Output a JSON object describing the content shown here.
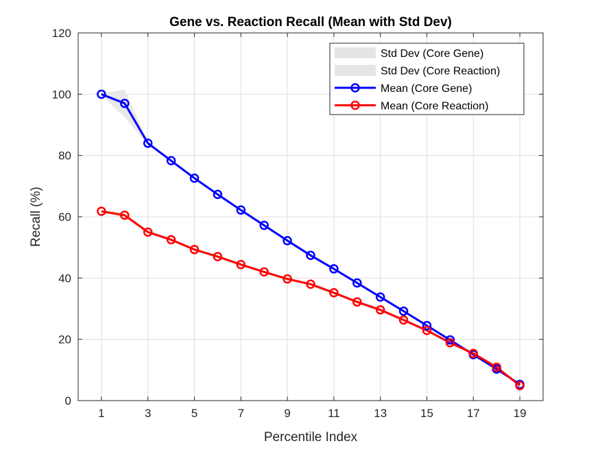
{
  "chart_data": {
    "type": "line",
    "title": "Gene vs. Reaction Recall (Mean with Std Dev)",
    "xlabel": "Percentile Index",
    "ylabel": "Recall (%)",
    "xlim": [
      0,
      20
    ],
    "ylim": [
      0,
      120
    ],
    "xticks": [
      1,
      3,
      5,
      7,
      9,
      11,
      13,
      15,
      17,
      19
    ],
    "yticks": [
      0,
      20,
      40,
      60,
      80,
      100,
      120
    ],
    "grid": true,
    "legend_position": "top-right",
    "x": [
      1,
      2,
      3,
      4,
      5,
      6,
      7,
      8,
      9,
      10,
      11,
      12,
      13,
      14,
      15,
      16,
      17,
      18,
      19
    ],
    "series": [
      {
        "name": "Mean (Core Gene)",
        "color": "#0000ff",
        "values": [
          100,
          97,
          84,
          78.3,
          72.6,
          67.3,
          62.2,
          57.2,
          52.2,
          47.4,
          43,
          38.4,
          33.8,
          29.2,
          24.5,
          19.8,
          15,
          10.3,
          5.3
        ],
        "std": [
          0.3,
          4.5,
          0.6,
          0.5,
          0.5,
          0.5,
          0.5,
          0.5,
          0.5,
          0.5,
          0.5,
          0.5,
          0.5,
          0.5,
          0.5,
          0.5,
          0.5,
          0.5,
          0.3
        ]
      },
      {
        "name": "Mean (Core Reaction)",
        "color": "#ff0000",
        "values": [
          61.8,
          60.5,
          55,
          52.5,
          49.3,
          47,
          44.4,
          42,
          39.7,
          38,
          35.2,
          32.2,
          29.6,
          26.3,
          22.9,
          18.9,
          15.4,
          10.9,
          4.9
        ],
        "std": [
          0.3,
          1.0,
          0.6,
          0.5,
          0.5,
          0.5,
          0.5,
          0.5,
          0.5,
          0.5,
          0.5,
          0.5,
          0.6,
          0.6,
          0.5,
          0.5,
          0.5,
          0.5,
          0.3
        ]
      }
    ],
    "legend": [
      {
        "label": "Std Dev (Core Gene)",
        "kind": "band",
        "color": "#e5e5e5"
      },
      {
        "label": "Std Dev (Core Reaction)",
        "kind": "band",
        "color": "#e5e5e5"
      },
      {
        "label": "Mean (Core Gene)",
        "kind": "line-marker",
        "color": "#0000ff"
      },
      {
        "label": "Mean (Core Reaction)",
        "kind": "line-marker",
        "color": "#ff0000"
      }
    ]
  }
}
